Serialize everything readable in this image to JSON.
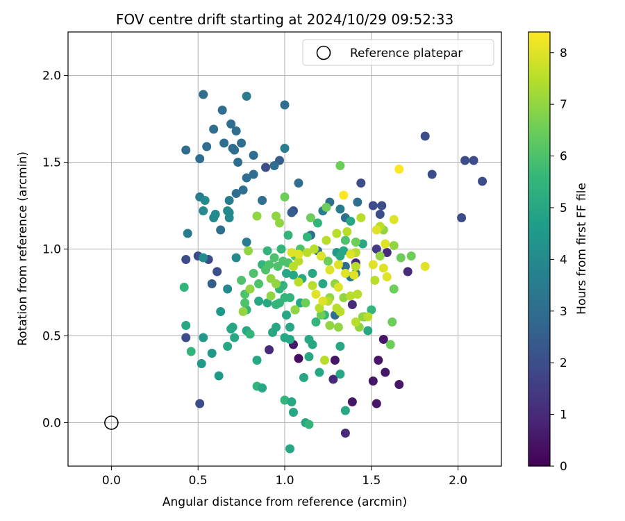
{
  "chart_data": {
    "type": "scatter",
    "title": "FOV centre drift starting at 2024/10/29 09:52:33",
    "xlabel": "Angular distance from reference (arcmin)",
    "ylabel": "Rotation from reference (arcmin)",
    "xlim": [
      -0.25,
      2.25
    ],
    "ylim": [
      -0.25,
      2.25
    ],
    "xticks": [
      "0.0",
      "0.5",
      "1.0",
      "1.5",
      "2.0"
    ],
    "yticks": [
      "0.0",
      "0.5",
      "1.0",
      "1.5",
      "2.0"
    ],
    "grid": true,
    "legend_position": "top-right",
    "legend_entries": [
      "Reference platepar"
    ],
    "reference_point": {
      "x": 0.0,
      "y": 0.0
    },
    "colorbar": {
      "label": "Hours from first FF file",
      "min": 0,
      "max": 8.4,
      "ticks": [
        "0",
        "1",
        "2",
        "3",
        "4",
        "5",
        "6",
        "7",
        "8"
      ],
      "colormap": "viridis",
      "colors": [
        "#440154",
        "#482878",
        "#3e4989",
        "#31688e",
        "#26828e",
        "#1f9e89",
        "#35b779",
        "#6ece58",
        "#b5de2b",
        "#fde725"
      ]
    },
    "points": [
      [
        2.14,
        1.39,
        2.0
      ],
      [
        2.09,
        1.51,
        2.0
      ],
      [
        2.04,
        1.51,
        2.0
      ],
      [
        2.02,
        1.18,
        2.0
      ],
      [
        1.85,
        1.43,
        2.0
      ],
      [
        1.81,
        1.65,
        2.0
      ],
      [
        1.71,
        0.87,
        1.0
      ],
      [
        1.66,
        0.22,
        0.5
      ],
      [
        1.58,
        0.29,
        0.5
      ],
      [
        1.54,
        0.36,
        0.5
      ],
      [
        1.53,
        0.11,
        0.5
      ],
      [
        1.51,
        0.24,
        0.5
      ],
      [
        1.57,
        0.48,
        0.5
      ],
      [
        1.39,
        0.12,
        0.5
      ],
      [
        1.35,
        -0.06,
        1.0
      ],
      [
        1.29,
        0.36,
        0.5
      ],
      [
        1.28,
        0.25,
        1.0
      ],
      [
        1.08,
        0.37,
        0.3
      ],
      [
        1.05,
        0.45,
        0.5
      ],
      [
        0.91,
        0.42,
        1.0
      ],
      [
        1.39,
        0.68,
        1.0
      ],
      [
        1.41,
        0.92,
        1.0
      ],
      [
        1.53,
        1.0,
        1.5
      ],
      [
        1.59,
        0.98,
        1.0
      ],
      [
        1.56,
        1.25,
        2.0
      ],
      [
        1.51,
        1.25,
        2.0
      ],
      [
        1.55,
        1.2,
        2.0
      ],
      [
        1.44,
        1.38,
        2.0
      ],
      [
        1.42,
        1.27,
        3.0
      ],
      [
        1.05,
        1.22,
        2.0
      ],
      [
        1.04,
        1.21,
        2.5
      ],
      [
        0.97,
        1.51,
        2.5
      ],
      [
        0.94,
        1.48,
        3.0
      ],
      [
        0.89,
        1.47,
        2.0
      ],
      [
        0.43,
        0.94,
        2.0
      ],
      [
        0.5,
        0.96,
        2.0
      ],
      [
        0.56,
        0.94,
        2.0
      ],
      [
        0.58,
        0.8,
        2.5
      ],
      [
        0.61,
        0.87,
        2.0
      ],
      [
        0.43,
        0.49,
        2.0
      ],
      [
        0.51,
        0.11,
        2.0
      ],
      [
        1.35,
        1.18,
        3.0
      ],
      [
        1.08,
        1.38,
        3.0
      ],
      [
        0.82,
        1.43,
        3.0
      ],
      [
        0.78,
        1.41,
        3.0
      ],
      [
        0.76,
        1.34,
        3.0
      ],
      [
        0.72,
        1.32,
        3.0
      ],
      [
        0.68,
        1.28,
        3.5
      ],
      [
        0.63,
        1.11,
        3.0
      ],
      [
        0.73,
        1.5,
        3.0
      ],
      [
        0.7,
        1.58,
        3.0
      ],
      [
        0.71,
        1.57,
        3.0
      ],
      [
        0.65,
        1.61,
        3.0
      ],
      [
        0.59,
        1.69,
        3.0
      ],
      [
        0.55,
        1.59,
        3.0
      ],
      [
        0.51,
        1.52,
        3.0
      ],
      [
        0.43,
        1.57,
        3.0
      ],
      [
        0.53,
        1.89,
        3.0
      ],
      [
        0.64,
        1.8,
        3.0
      ],
      [
        0.69,
        1.72,
        3.0
      ],
      [
        0.72,
        1.68,
        3.0
      ],
      [
        0.75,
        1.61,
        3.0
      ],
      [
        0.78,
        1.88,
        3.5
      ],
      [
        0.82,
        1.54,
        3.0
      ],
      [
        0.87,
        1.28,
        3.0
      ],
      [
        1.0,
        1.83,
        3.0
      ],
      [
        1.0,
        1.58,
        3.5
      ],
      [
        1.22,
        1.22,
        3.5
      ],
      [
        1.26,
        1.27,
        3.0
      ],
      [
        1.32,
        1.23,
        3.5
      ],
      [
        1.35,
        0.9,
        3.0
      ],
      [
        1.38,
        0.84,
        3.5
      ],
      [
        1.41,
        0.86,
        3.0
      ],
      [
        1.29,
        0.62,
        3.0
      ],
      [
        1.15,
        1.08,
        3.0
      ],
      [
        1.19,
        0.99,
        3.0
      ],
      [
        0.51,
        1.3,
        3.5
      ],
      [
        0.54,
        1.28,
        4.0
      ],
      [
        0.53,
        1.22,
        4.0
      ],
      [
        0.59,
        1.18,
        4.0
      ],
      [
        0.6,
        1.2,
        4.0
      ],
      [
        0.67,
        1.22,
        4.0
      ],
      [
        0.68,
        1.21,
        4.0
      ],
      [
        0.68,
        1.18,
        4.0
      ],
      [
        0.78,
        1.04,
        3.5
      ],
      [
        0.44,
        1.09,
        3.5
      ],
      [
        0.72,
        0.95,
        4.0
      ],
      [
        0.53,
        0.95,
        4.0
      ],
      [
        0.67,
        0.77,
        4.0
      ],
      [
        0.63,
        0.64,
        4.5
      ],
      [
        0.62,
        0.27,
        4.5
      ],
      [
        0.58,
        0.4,
        4.5
      ],
      [
        0.53,
        0.49,
        4.5
      ],
      [
        0.52,
        0.34,
        4.5
      ],
      [
        0.46,
        0.41,
        5.5
      ],
      [
        0.42,
        0.78,
        5.5
      ],
      [
        0.43,
        0.56,
        5.0
      ],
      [
        0.67,
        0.44,
        5.0
      ],
      [
        0.69,
        0.54,
        5.0
      ],
      [
        0.7,
        0.55,
        5.0
      ],
      [
        0.71,
        0.49,
        5.0
      ],
      [
        0.78,
        0.53,
        5.0
      ],
      [
        0.8,
        0.51,
        5.5
      ],
      [
        0.78,
        0.65,
        5.5
      ],
      [
        0.84,
        0.36,
        5.0
      ],
      [
        0.84,
        0.21,
        5.5
      ],
      [
        0.87,
        0.2,
        5.0
      ],
      [
        1.0,
        0.13,
        5.5
      ],
      [
        1.04,
        0.12,
        5.0
      ],
      [
        1.05,
        0.06,
        5.0
      ],
      [
        1.12,
        0.0,
        5.0
      ],
      [
        1.14,
        -0.01,
        5.5
      ],
      [
        1.03,
        -0.15,
        5.0
      ],
      [
        1.35,
        0.07,
        5.0
      ],
      [
        1.32,
        0.28,
        5.0
      ],
      [
        1.32,
        0.44,
        5.0
      ],
      [
        1.2,
        0.29,
        5.0
      ],
      [
        1.14,
        0.38,
        5.0
      ],
      [
        1.11,
        0.26,
        5.0
      ],
      [
        1.16,
        0.45,
        5.0
      ],
      [
        1.14,
        0.48,
        5.0
      ],
      [
        1.03,
        0.48,
        5.0
      ],
      [
        1.0,
        0.49,
        5.0
      ],
      [
        0.93,
        0.52,
        5.0
      ],
      [
        0.95,
        0.55,
        5.0
      ],
      [
        1.03,
        0.55,
        5.0
      ],
      [
        1.06,
        0.65,
        5.0
      ],
      [
        1.01,
        0.62,
        5.0
      ],
      [
        1.09,
        0.69,
        5.0
      ],
      [
        0.85,
        0.7,
        5.0
      ],
      [
        0.9,
        0.69,
        5.0
      ],
      [
        0.95,
        0.68,
        5.5
      ],
      [
        0.97,
        0.69,
        5.5
      ],
      [
        1.0,
        0.72,
        5.5
      ],
      [
        1.03,
        0.72,
        5.5
      ],
      [
        1.18,
        0.58,
        5.5
      ],
      [
        1.23,
        0.62,
        5.5
      ],
      [
        1.48,
        0.53,
        5.0
      ],
      [
        1.5,
        0.65,
        5.5
      ],
      [
        1.46,
        0.61,
        5.5
      ],
      [
        1.45,
        1.03,
        5.0
      ],
      [
        1.38,
        1.16,
        5.0
      ],
      [
        1.3,
        0.98,
        4.5
      ],
      [
        1.32,
        0.96,
        5.0
      ],
      [
        1.34,
        0.99,
        5.0
      ],
      [
        1.16,
        0.86,
        5.0
      ],
      [
        1.22,
        0.8,
        5.0
      ],
      [
        1.1,
        0.83,
        5.0
      ],
      [
        1.05,
        0.85,
        5.0
      ],
      [
        1.01,
        0.86,
        5.0
      ],
      [
        0.97,
        0.77,
        5.5
      ],
      [
        0.99,
        0.79,
        5.5
      ],
      [
        0.87,
        0.91,
        5.5
      ],
      [
        0.9,
        0.99,
        5.5
      ],
      [
        0.98,
        1.0,
        5.5
      ],
      [
        1.02,
        1.08,
        5.5
      ],
      [
        1.13,
        1.07,
        5.5
      ],
      [
        1.19,
        1.15,
        5.5
      ],
      [
        0.75,
        0.82,
        6.0
      ],
      [
        0.77,
        0.69,
        6.0
      ],
      [
        0.77,
        0.74,
        6.0
      ],
      [
        0.82,
        0.86,
        6.0
      ],
      [
        0.85,
        0.8,
        6.0
      ],
      [
        0.89,
        0.88,
        6.0
      ],
      [
        0.91,
        0.91,
        6.0
      ],
      [
        0.94,
        0.95,
        6.0
      ],
      [
        0.96,
        0.9,
        6.0
      ],
      [
        0.99,
        0.93,
        6.0
      ],
      [
        1.02,
        0.92,
        6.0
      ],
      [
        1.06,
        0.96,
        6.0
      ],
      [
        1.09,
        1.0,
        6.0
      ],
      [
        1.21,
        0.96,
        6.0
      ],
      [
        1.25,
        0.93,
        6.5
      ],
      [
        1.32,
        1.48,
        6.5
      ],
      [
        1.24,
        1.24,
        6.5
      ],
      [
        1.15,
        1.18,
        6.5
      ],
      [
        1.0,
        1.3,
        6.5
      ],
      [
        0.95,
        1.19,
        7.0
      ],
      [
        0.97,
        1.15,
        7.0
      ],
      [
        0.84,
        1.19,
        7.0
      ],
      [
        0.79,
        0.99,
        7.0
      ],
      [
        0.8,
        0.77,
        7.0
      ],
      [
        0.76,
        0.64,
        7.0
      ],
      [
        1.06,
        0.65,
        7.0
      ],
      [
        1.12,
        0.69,
        6.5
      ],
      [
        1.21,
        0.62,
        6.5
      ],
      [
        1.26,
        0.56,
        7.0
      ],
      [
        1.31,
        0.55,
        7.0
      ],
      [
        1.43,
        0.55,
        7.0
      ],
      [
        1.45,
        0.61,
        7.0
      ],
      [
        1.62,
        0.58,
        6.5
      ],
      [
        1.61,
        0.45,
        6.5
      ],
      [
        1.63,
        0.77,
        6.5
      ],
      [
        1.67,
        0.95,
        6.5
      ],
      [
        1.73,
        0.96,
        6.5
      ],
      [
        1.63,
        1.02,
        7.0
      ],
      [
        1.55,
        0.96,
        7.0
      ],
      [
        1.57,
        1.11,
        7.0
      ],
      [
        1.41,
        1.04,
        6.5
      ],
      [
        1.35,
        1.05,
        6.0
      ],
      [
        1.29,
        0.8,
        7.0
      ],
      [
        1.26,
        0.72,
        7.0
      ],
      [
        1.34,
        0.72,
        7.0
      ],
      [
        1.38,
        0.73,
        7.5
      ],
      [
        1.42,
        0.74,
        7.5
      ],
      [
        1.48,
        0.61,
        7.5
      ],
      [
        1.41,
        0.58,
        7.5
      ],
      [
        1.32,
        0.64,
        7.5
      ],
      [
        1.3,
        0.66,
        7.5
      ],
      [
        1.25,
        0.7,
        7.5
      ],
      [
        1.2,
        0.66,
        7.5
      ],
      [
        1.16,
        0.79,
        7.5
      ],
      [
        1.08,
        0.81,
        7.5
      ],
      [
        1.05,
        0.9,
        7.5
      ],
      [
        1.08,
        0.93,
        7.5
      ],
      [
        1.13,
        0.98,
        7.5
      ],
      [
        1.17,
        1.0,
        7.5
      ],
      [
        1.24,
        1.05,
        7.5
      ],
      [
        1.3,
        1.09,
        7.5
      ],
      [
        1.36,
        1.1,
        7.5
      ],
      [
        1.41,
        0.98,
        7.5
      ],
      [
        1.41,
        0.9,
        7.5
      ],
      [
        1.44,
        1.18,
        7.5
      ],
      [
        1.55,
        1.13,
        7.5
      ],
      [
        1.52,
        0.82,
        7.5
      ],
      [
        1.59,
        0.84,
        8.0
      ],
      [
        1.57,
        0.89,
        8.0
      ],
      [
        1.58,
        1.03,
        8.0
      ],
      [
        1.53,
        1.11,
        8.0
      ],
      [
        1.51,
        0.91,
        8.0
      ],
      [
        1.63,
        1.17,
        8.0
      ],
      [
        1.66,
        1.46,
        8.5
      ],
      [
        1.81,
        0.9,
        8.0
      ],
      [
        1.38,
        0.97,
        8.0
      ],
      [
        1.4,
        0.85,
        8.0
      ],
      [
        1.35,
        0.86,
        8.0
      ],
      [
        1.31,
        0.78,
        8.0
      ],
      [
        1.26,
        0.88,
        8.0
      ],
      [
        1.21,
        0.96,
        8.0
      ],
      [
        1.18,
        0.74,
        8.0
      ],
      [
        1.22,
        0.7,
        8.0
      ],
      [
        1.04,
        0.98,
        8.0
      ],
      [
        1.08,
        0.97,
        8.0
      ],
      [
        1.31,
        0.91,
        8.0
      ],
      [
        1.34,
        1.31,
        8.5
      ],
      [
        1.23,
        0.36,
        7.5
      ],
      [
        0.92,
        0.83,
        7.0
      ],
      [
        0.92,
        0.73,
        7.0
      ],
      [
        0.95,
        0.8,
        7.0
      ]
    ]
  }
}
